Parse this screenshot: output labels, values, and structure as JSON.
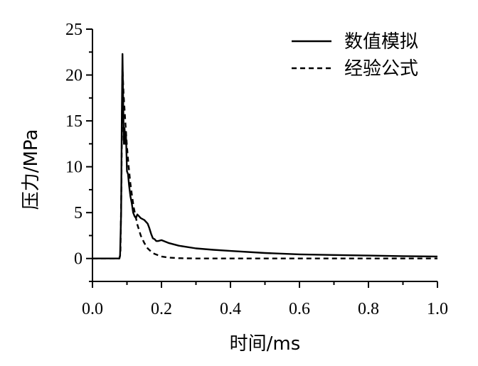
{
  "chart_data": {
    "type": "line",
    "xlabel": "时间/ms",
    "ylabel": "压力/MPa",
    "xlim": [
      0.0,
      1.0
    ],
    "ylim": [
      -2.5,
      25
    ],
    "x_ticks": [
      "0.0",
      "0.2",
      "0.4",
      "0.6",
      "0.8",
      "1.0"
    ],
    "y_ticks": [
      "0",
      "5",
      "10",
      "15",
      "20",
      "25"
    ],
    "legend_position": "top-right",
    "series": [
      {
        "name": "数值模拟",
        "style": "solid",
        "color": "#000000",
        "points": [
          [
            0.0,
            0.0
          ],
          [
            0.078,
            0.0
          ],
          [
            0.08,
            0.3
          ],
          [
            0.083,
            5.0
          ],
          [
            0.085,
            15.0
          ],
          [
            0.087,
            22.3
          ],
          [
            0.089,
            17.0
          ],
          [
            0.091,
            12.5
          ],
          [
            0.093,
            14.2
          ],
          [
            0.095,
            12.5
          ],
          [
            0.097,
            13.8
          ],
          [
            0.1,
            9.5
          ],
          [
            0.103,
            9.2
          ],
          [
            0.106,
            8.0
          ],
          [
            0.11,
            6.8
          ],
          [
            0.114,
            6.0
          ],
          [
            0.118,
            5.0
          ],
          [
            0.122,
            4.6
          ],
          [
            0.126,
            4.4
          ],
          [
            0.13,
            4.8
          ],
          [
            0.135,
            4.6
          ],
          [
            0.14,
            4.4
          ],
          [
            0.15,
            4.2
          ],
          [
            0.16,
            3.8
          ],
          [
            0.165,
            3.3
          ],
          [
            0.17,
            2.7
          ],
          [
            0.175,
            2.2
          ],
          [
            0.18,
            2.1
          ],
          [
            0.185,
            1.9
          ],
          [
            0.19,
            1.9
          ],
          [
            0.2,
            2.0
          ],
          [
            0.22,
            1.7
          ],
          [
            0.25,
            1.4
          ],
          [
            0.3,
            1.1
          ],
          [
            0.35,
            0.95
          ],
          [
            0.4,
            0.82
          ],
          [
            0.5,
            0.6
          ],
          [
            0.6,
            0.45
          ],
          [
            0.7,
            0.38
          ],
          [
            0.8,
            0.32
          ],
          [
            0.9,
            0.26
          ],
          [
            1.0,
            0.22
          ]
        ]
      },
      {
        "name": "经验公式",
        "style": "dashed",
        "color": "#000000",
        "points": [
          [
            0.0,
            0.0
          ],
          [
            0.078,
            0.0
          ],
          [
            0.081,
            0.5
          ],
          [
            0.084,
            8.0
          ],
          [
            0.086,
            17.0
          ],
          [
            0.087,
            20.8
          ],
          [
            0.09,
            18.0
          ],
          [
            0.095,
            15.0
          ],
          [
            0.1,
            12.2
          ],
          [
            0.105,
            10.0
          ],
          [
            0.11,
            8.2
          ],
          [
            0.115,
            6.7
          ],
          [
            0.12,
            5.5
          ],
          [
            0.13,
            3.7
          ],
          [
            0.14,
            2.5
          ],
          [
            0.15,
            1.7
          ],
          [
            0.16,
            1.1
          ],
          [
            0.17,
            0.75
          ],
          [
            0.18,
            0.5
          ],
          [
            0.2,
            0.22
          ],
          [
            0.22,
            0.1
          ],
          [
            0.25,
            0.03
          ],
          [
            0.3,
            0.0
          ],
          [
            1.0,
            0.0
          ]
        ]
      }
    ]
  }
}
